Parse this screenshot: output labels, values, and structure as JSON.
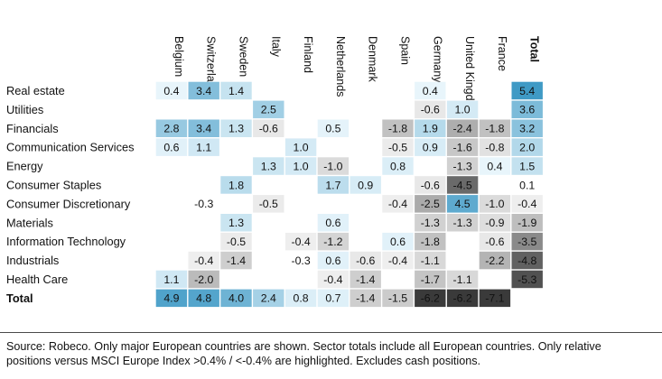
{
  "chart_data": {
    "type": "heatmap",
    "title": "",
    "columns": [
      "Belgium",
      "Switzerland",
      "Sweden",
      "Italy",
      "Finland",
      "Netherlands",
      "Denmark",
      "Spain",
      "Germany",
      "United Kingdom",
      "France",
      "Total"
    ],
    "rows": [
      "Real estate",
      "Utilities",
      "Financials",
      "Communication Services",
      "Energy",
      "Consumer Staples",
      "Consumer Discretionary",
      "Materials",
      "Information Technology",
      "Industrials",
      "Health Care",
      "Total"
    ],
    "unit": "%",
    "values": [
      [
        0.4,
        3.4,
        1.4,
        null,
        null,
        null,
        null,
        null,
        0.4,
        null,
        null,
        5.4
      ],
      [
        null,
        null,
        null,
        2.5,
        null,
        null,
        null,
        null,
        -0.6,
        1.0,
        null,
        3.6
      ],
      [
        2.8,
        3.4,
        1.3,
        -0.6,
        null,
        0.5,
        null,
        -1.8,
        1.9,
        -2.4,
        -1.8,
        3.2
      ],
      [
        0.6,
        1.1,
        null,
        null,
        1.0,
        null,
        null,
        -0.5,
        0.9,
        -1.6,
        -0.8,
        2.0
      ],
      [
        null,
        null,
        null,
        1.3,
        1.0,
        -1.0,
        null,
        0.8,
        null,
        -1.3,
        0.4,
        1.5
      ],
      [
        null,
        null,
        1.8,
        null,
        null,
        1.7,
        0.9,
        null,
        -0.6,
        -4.5,
        null,
        0.1
      ],
      [
        null,
        -0.3,
        null,
        -0.5,
        null,
        null,
        null,
        -0.4,
        -2.5,
        4.5,
        -1.0,
        -0.4
      ],
      [
        null,
        null,
        1.3,
        null,
        null,
        0.6,
        null,
        null,
        -1.3,
        -1.3,
        -0.9,
        -1.9
      ],
      [
        null,
        null,
        -0.5,
        null,
        -0.4,
        -1.2,
        null,
        0.6,
        -1.8,
        null,
        -0.6,
        -3.5
      ],
      [
        null,
        -0.4,
        -1.4,
        null,
        -0.3,
        0.6,
        -0.6,
        -0.4,
        -1.1,
        null,
        -2.2,
        -4.8
      ],
      [
        1.1,
        -2.0,
        null,
        null,
        null,
        -0.4,
        -1.4,
        null,
        -1.7,
        -1.1,
        null,
        -5.3
      ],
      [
        4.9,
        4.8,
        4.0,
        2.4,
        0.8,
        0.7,
        -1.4,
        -1.5,
        -6.2,
        -6.2,
        -7.1,
        null
      ]
    ],
    "highlight_threshold": 0.4
  },
  "colors": {
    "positive": "#2b8fbf",
    "positive_light": "#e8f5fb",
    "negative": "#3a3a3a",
    "negative_light": "#eeeeee",
    "text": "#111111"
  },
  "source_note": {
    "line1": "Source: Robeco. Only major European countries are shown. Sector totals include all European countries. Only relative",
    "line2": "positions versus MSCI Europe Index >0.4% / <-0.4% are highlighted. Excludes cash positions."
  }
}
